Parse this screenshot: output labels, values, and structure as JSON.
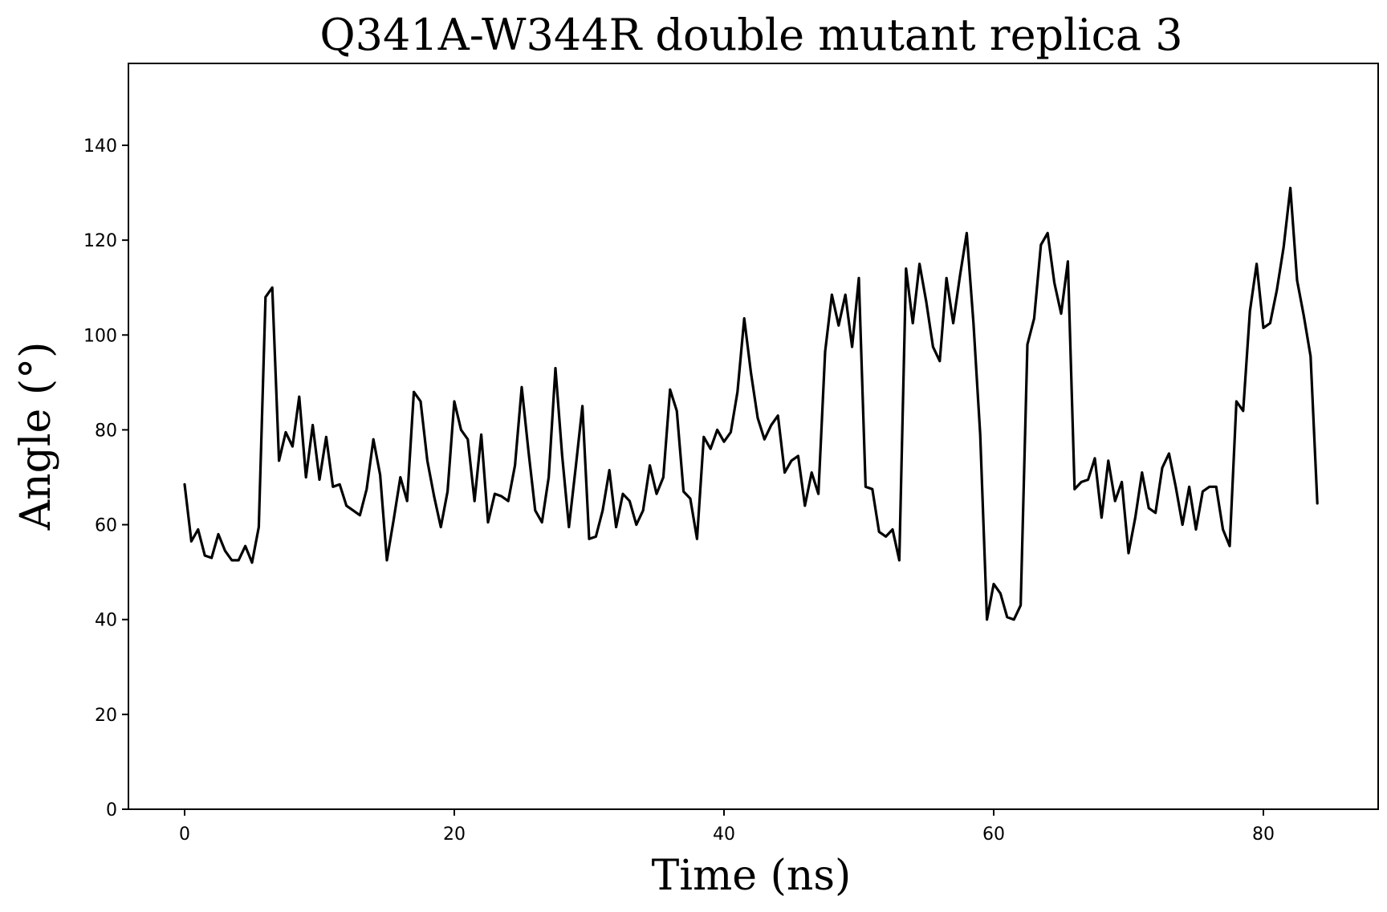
{
  "chart_data": {
    "type": "line",
    "title": "Q341A-W344R double mutant replica 3",
    "xlabel": "Time (ns)",
    "ylabel": "Angle (°)",
    "xlim": [
      -5,
      88.5
    ],
    "ylim": [
      0,
      140
    ],
    "x_ticks": [
      0,
      20,
      40,
      60,
      80
    ],
    "y_ticks": [
      0,
      20,
      40,
      60,
      80,
      100,
      120,
      140
    ],
    "grid": false,
    "line_color": "#000000",
    "series": [
      {
        "x": [
          0,
          0.5,
          1,
          1.5,
          2,
          2.5,
          3,
          3.5,
          4,
          4.5,
          5,
          5.5,
          6,
          6.5,
          7,
          7.5,
          8,
          8.5,
          9,
          9.5,
          10,
          10.5,
          11,
          11.5,
          12,
          12.5,
          13,
          13.5,
          14,
          14.5,
          15,
          15.5,
          16,
          16.5,
          17,
          17.5,
          18,
          18.5,
          19,
          19.5,
          20,
          20.5,
          21,
          21.5,
          22,
          22.5,
          23,
          23.5,
          24,
          24.5,
          25,
          25.5,
          26,
          26.5,
          27,
          27.5,
          28,
          28.5,
          29,
          29.5,
          30,
          30.5,
          31,
          31.5,
          32,
          32.5,
          33,
          33.5,
          34,
          34.5,
          35,
          35.5,
          36,
          36.5,
          37,
          37.5,
          38,
          38.5,
          39,
          39.5,
          40,
          40.5,
          41,
          41.5,
          42,
          42.5,
          43,
          43.5,
          44,
          44.5,
          45,
          45.5,
          46,
          46.5,
          47,
          47.5,
          48,
          48.5,
          49,
          49.5,
          50,
          50.5,
          51,
          51.5,
          52,
          52.5,
          53,
          53.5,
          54,
          54.5,
          55,
          55.5,
          56,
          56.5,
          57,
          57.5,
          58,
          58.5,
          59,
          59.5,
          60,
          60.5,
          61,
          61.5,
          62,
          62.5,
          63,
          63.5,
          64,
          64.5,
          65,
          65.5,
          66,
          66.5,
          67,
          67.5,
          68,
          68.5,
          69,
          69.5,
          70,
          70.5,
          71,
          71.5,
          72,
          72.5,
          73,
          73.5,
          74,
          74.5,
          75,
          75.5,
          76,
          76.5,
          77,
          77.5,
          78,
          78.5,
          79,
          79.5,
          80,
          80.5,
          81,
          81.5,
          82,
          82.5,
          83,
          83.5,
          84
        ],
        "y": [
          68.5,
          56.5,
          59.0,
          53.5,
          53.0,
          58.0,
          54.5,
          52.5,
          52.5,
          55.5,
          52.0,
          59.5,
          108.0,
          110.0,
          73.5,
          79.5,
          76.5,
          87.0,
          70.0,
          81.0,
          69.5,
          78.5,
          68.0,
          68.5,
          64.0,
          63.0,
          62.0,
          67.5,
          78.0,
          70.5,
          52.5,
          61.0,
          70.0,
          65.0,
          88.0,
          86.0,
          73.5,
          66.0,
          59.5,
          67.0,
          86.0,
          80.0,
          78.0,
          65.0,
          79.0,
          60.5,
          66.5,
          66.0,
          65.0,
          72.5,
          89.0,
          75.5,
          63.0,
          60.5,
          70.0,
          93.0,
          74.5,
          59.5,
          72.0,
          85.0,
          57.0,
          57.5,
          63.0,
          71.5,
          59.5,
          66.5,
          65.0,
          60.0,
          63.0,
          72.5,
          66.5,
          70.0,
          88.5,
          84.0,
          67.0,
          65.5,
          57.0,
          78.5,
          76.0,
          80.0,
          77.5,
          79.5,
          88.0,
          103.5,
          92.0,
          82.5,
          78.0,
          81.0,
          83.0,
          71.0,
          73.5,
          74.5,
          64.0,
          71.0,
          66.5,
          96.5,
          108.5,
          102.0,
          108.5,
          97.5,
          112.0,
          68.0,
          67.5,
          58.5,
          57.5,
          59.0,
          52.5,
          114.0,
          102.5,
          115.0,
          107.0,
          97.5,
          94.5,
          112.0,
          102.5,
          112.5,
          121.5,
          102.5,
          79.0,
          40.0,
          47.5,
          45.5,
          40.5,
          40.0,
          43.0,
          98.0,
          103.5,
          119.0,
          121.5,
          111.0,
          104.5,
          115.5,
          67.5,
          69.0,
          69.5,
          74.0,
          61.5,
          73.5,
          65.0,
          69.0,
          54.0,
          61.5,
          71.0,
          63.5,
          62.5,
          72.0,
          75.0,
          68.0,
          60.0,
          68.0,
          59.0,
          67.0,
          68.0,
          68.0,
          59.0,
          55.5,
          86.0,
          84.0,
          105.0,
          115.0,
          101.5,
          102.5,
          109.5,
          118.5,
          131.0,
          111.5,
          104.0,
          95.5,
          64.5
        ]
      }
    ]
  }
}
